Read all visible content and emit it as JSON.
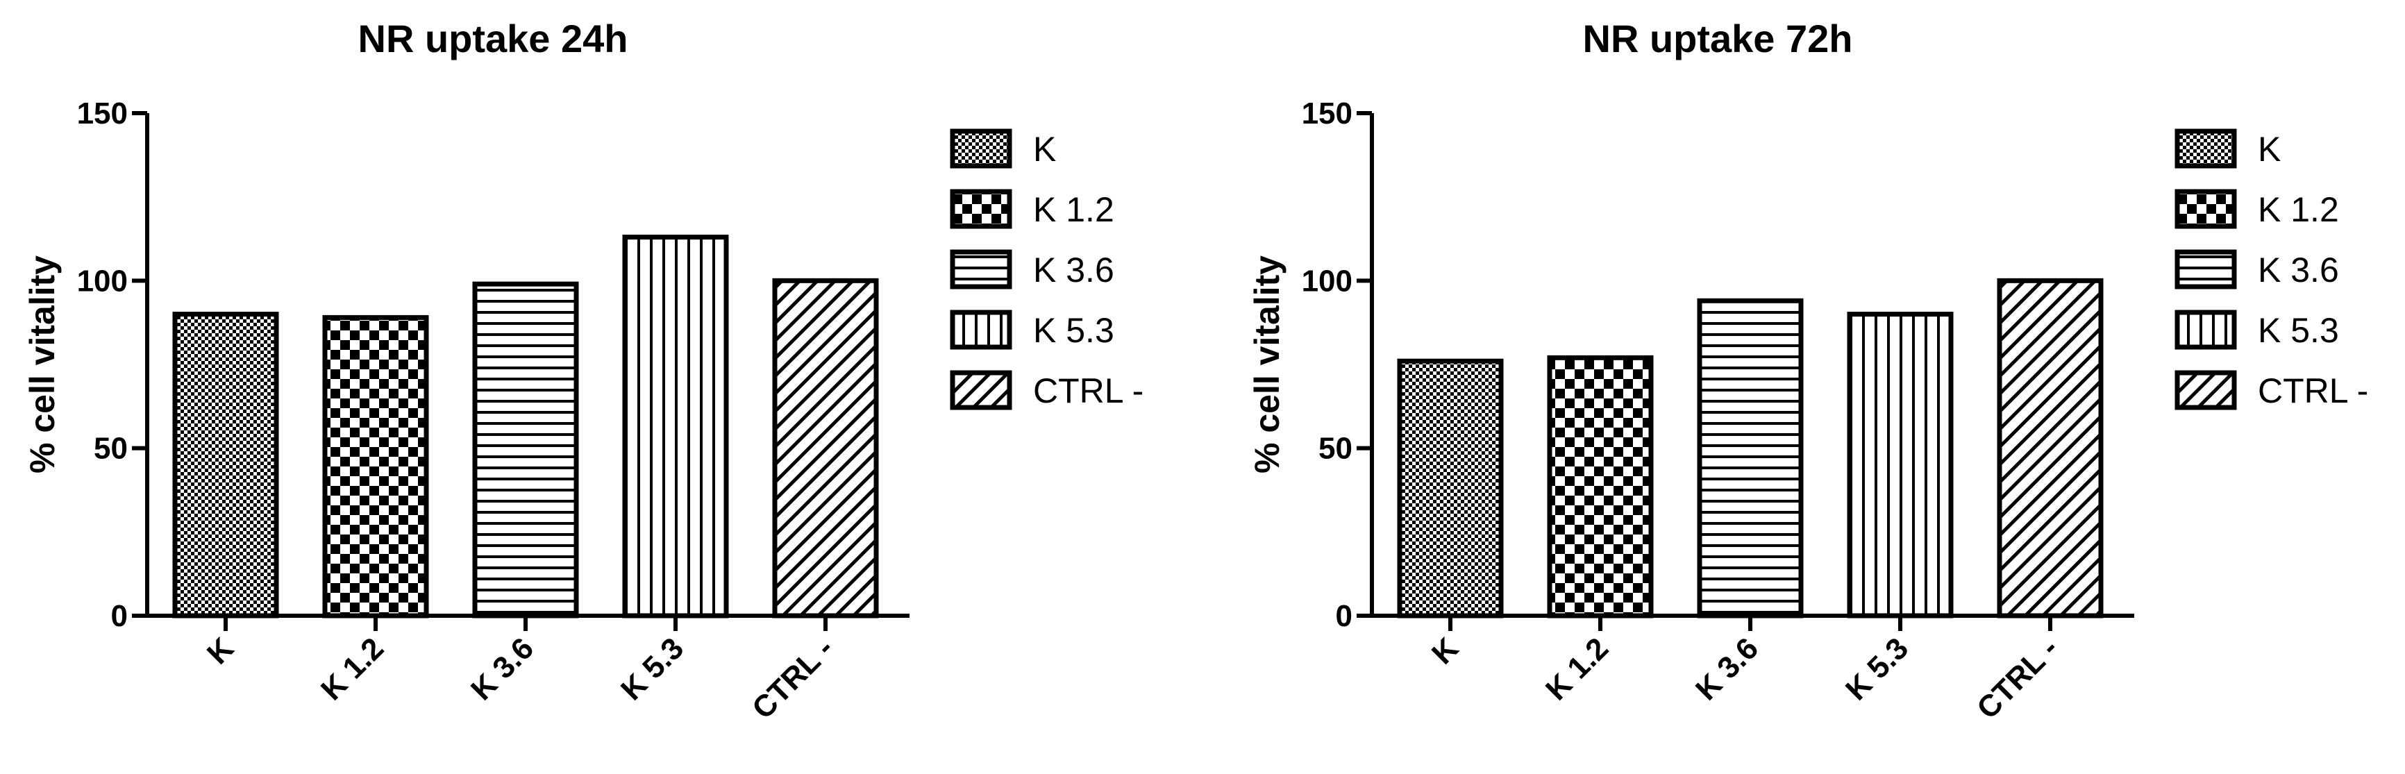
{
  "chart_data": [
    {
      "type": "bar",
      "title": "NR uptake 24h",
      "ylabel": "% cell vitality",
      "xlabel": "",
      "ylim": [
        0,
        150
      ],
      "yticks": [
        0,
        50,
        100,
        150
      ],
      "categories": [
        "K",
        "K 1.2",
        "K 3.6",
        "K 5.3",
        "CTRL -"
      ],
      "values": [
        90,
        89,
        99,
        113,
        100
      ],
      "legend": {
        "placement": "right",
        "entries": [
          "K",
          "K 1.2",
          "K 3.6",
          "K 5.3",
          "CTRL -"
        ]
      },
      "grid": false
    },
    {
      "type": "bar",
      "title": "NR uptake 72h",
      "ylabel": "% cell vitality",
      "xlabel": "",
      "ylim": [
        0,
        150
      ],
      "yticks": [
        0,
        50,
        100,
        150
      ],
      "categories": [
        "K",
        "K 1.2",
        "K 3.6",
        "K 5.3",
        "CTRL -"
      ],
      "values": [
        76,
        77,
        94,
        90,
        100
      ],
      "legend": {
        "placement": "right",
        "entries": [
          "K",
          "K 1.2",
          "K 3.6",
          "K 5.3",
          "CTRL -"
        ]
      },
      "grid": false
    }
  ],
  "patterns": [
    "fine-checker",
    "checker",
    "horizontal-lines",
    "vertical-lines",
    "diagonal-lines"
  ],
  "colors": {
    "ink": "#000000",
    "background": "#ffffff"
  }
}
